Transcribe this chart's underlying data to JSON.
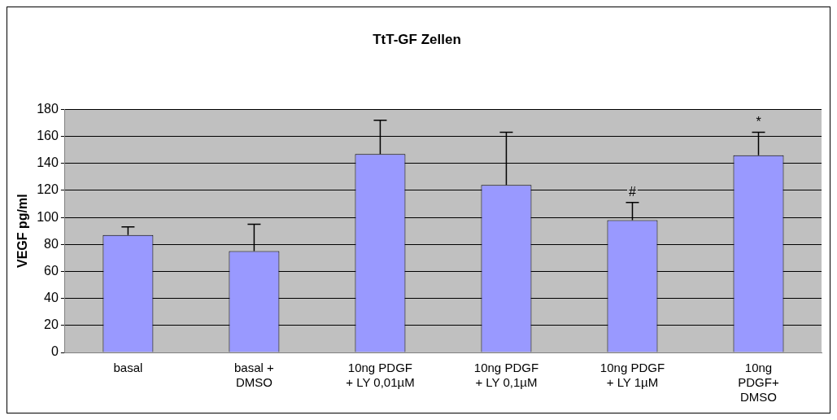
{
  "chart_data": {
    "type": "bar",
    "title": "TtT-GF Zellen",
    "ylabel": "VEGF pg/ml",
    "categories": [
      "basal",
      "basal +\nDMSO",
      "10ng PDGF\n+ LY 0,01µM",
      "10ng PDGF\n+ LY 0,1µM",
      "10ng PDGF\n+ LY 1µM",
      "10ng\nPDGF+\nDMSO"
    ],
    "values": [
      87,
      75,
      147,
      124,
      98,
      146
    ],
    "errors": [
      [
        87,
        93
      ],
      [
        75,
        95
      ],
      [
        147,
        172
      ],
      [
        124,
        163
      ],
      [
        98,
        111
      ],
      [
        146,
        163
      ]
    ],
    "color": "#9999ff",
    "ylim": [
      0,
      180
    ],
    "yticks": [
      0,
      20,
      40,
      60,
      80,
      100,
      120,
      140,
      160,
      180
    ],
    "grid": "y",
    "legend": false,
    "annotations": [
      {
        "text": "#",
        "x": "10ng PDGF\n+ LY 1µM",
        "y": 111
      },
      {
        "text": "*",
        "x": "10ng\nPDGF+\nDMSO",
        "y": 163
      }
    ]
  }
}
